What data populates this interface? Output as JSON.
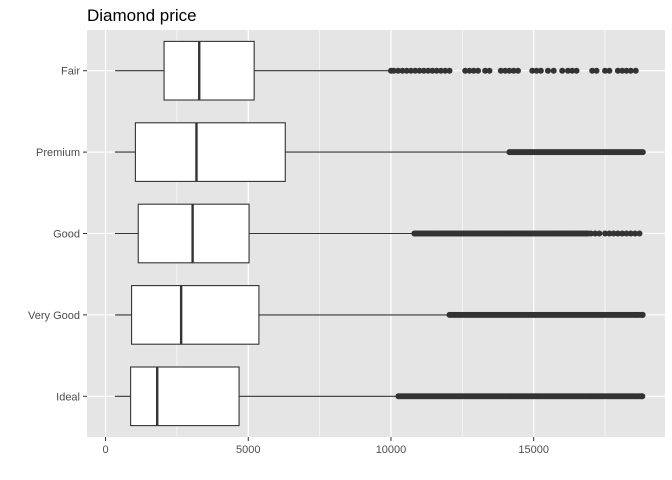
{
  "chart_data": {
    "type": "boxplot",
    "orientation": "horizontal",
    "title": "Diamond price",
    "xlabel": "",
    "ylabel": "",
    "xlim": [
      -650,
      19600
    ],
    "xticks": [
      0,
      5000,
      10000,
      15000
    ],
    "xtick_labels": [
      "0",
      "5000",
      "10000",
      "15000"
    ],
    "grid": true,
    "legend": "none",
    "colors": {
      "panel_bg": "#e5e5e5",
      "grid": "#ffffff",
      "box_fill": "#ffffff",
      "box_stroke": "#333333",
      "outlier": "#333333",
      "tick": "#333333"
    },
    "categories": [
      "Fair",
      "Premium",
      "Good",
      "Very Good",
      "Ideal"
    ],
    "boxes": [
      {
        "name": "Fair",
        "whisker_low": 337,
        "q1": 2050,
        "median": 3282,
        "q3": 5206,
        "whisker_high": 9950,
        "outliers": [
          10000,
          10100,
          10250,
          10400,
          10550,
          10700,
          10850,
          11000,
          11150,
          11300,
          11450,
          11600,
          11750,
          11900,
          12050,
          12600,
          12750,
          12900,
          13050,
          13300,
          13450,
          13850,
          14000,
          14150,
          14300,
          14450,
          14950,
          15100,
          15250,
          15500,
          15700,
          16000,
          16200,
          16350,
          16500,
          17050,
          17200,
          17500,
          17650,
          17950,
          18100,
          18250,
          18400,
          18574
        ]
      },
      {
        "name": "Premium",
        "whisker_low": 326,
        "q1": 1046,
        "median": 3185,
        "q3": 6296,
        "whisker_high": 14120,
        "outliers_range": [
          14150,
          18823
        ]
      },
      {
        "name": "Good",
        "whisker_low": 327,
        "q1": 1145,
        "median": 3050,
        "q3": 5028,
        "whisker_high": 10800,
        "outliers_range": [
          10820,
          16900
        ],
        "outliers": [
          17000,
          17150,
          17300,
          17500,
          17650,
          17800,
          17950,
          18100,
          18250,
          18400,
          18550,
          18707
        ]
      },
      {
        "name": "Very Good",
        "whisker_low": 336,
        "q1": 912,
        "median": 2648,
        "q3": 5373,
        "whisker_high": 12000,
        "outliers_range": [
          12050,
          18818
        ]
      },
      {
        "name": "Ideal",
        "whisker_low": 326,
        "q1": 878,
        "median": 1810,
        "q3": 4678,
        "whisker_high": 10240,
        "outliers_range": [
          10260,
          18806
        ]
      }
    ]
  }
}
